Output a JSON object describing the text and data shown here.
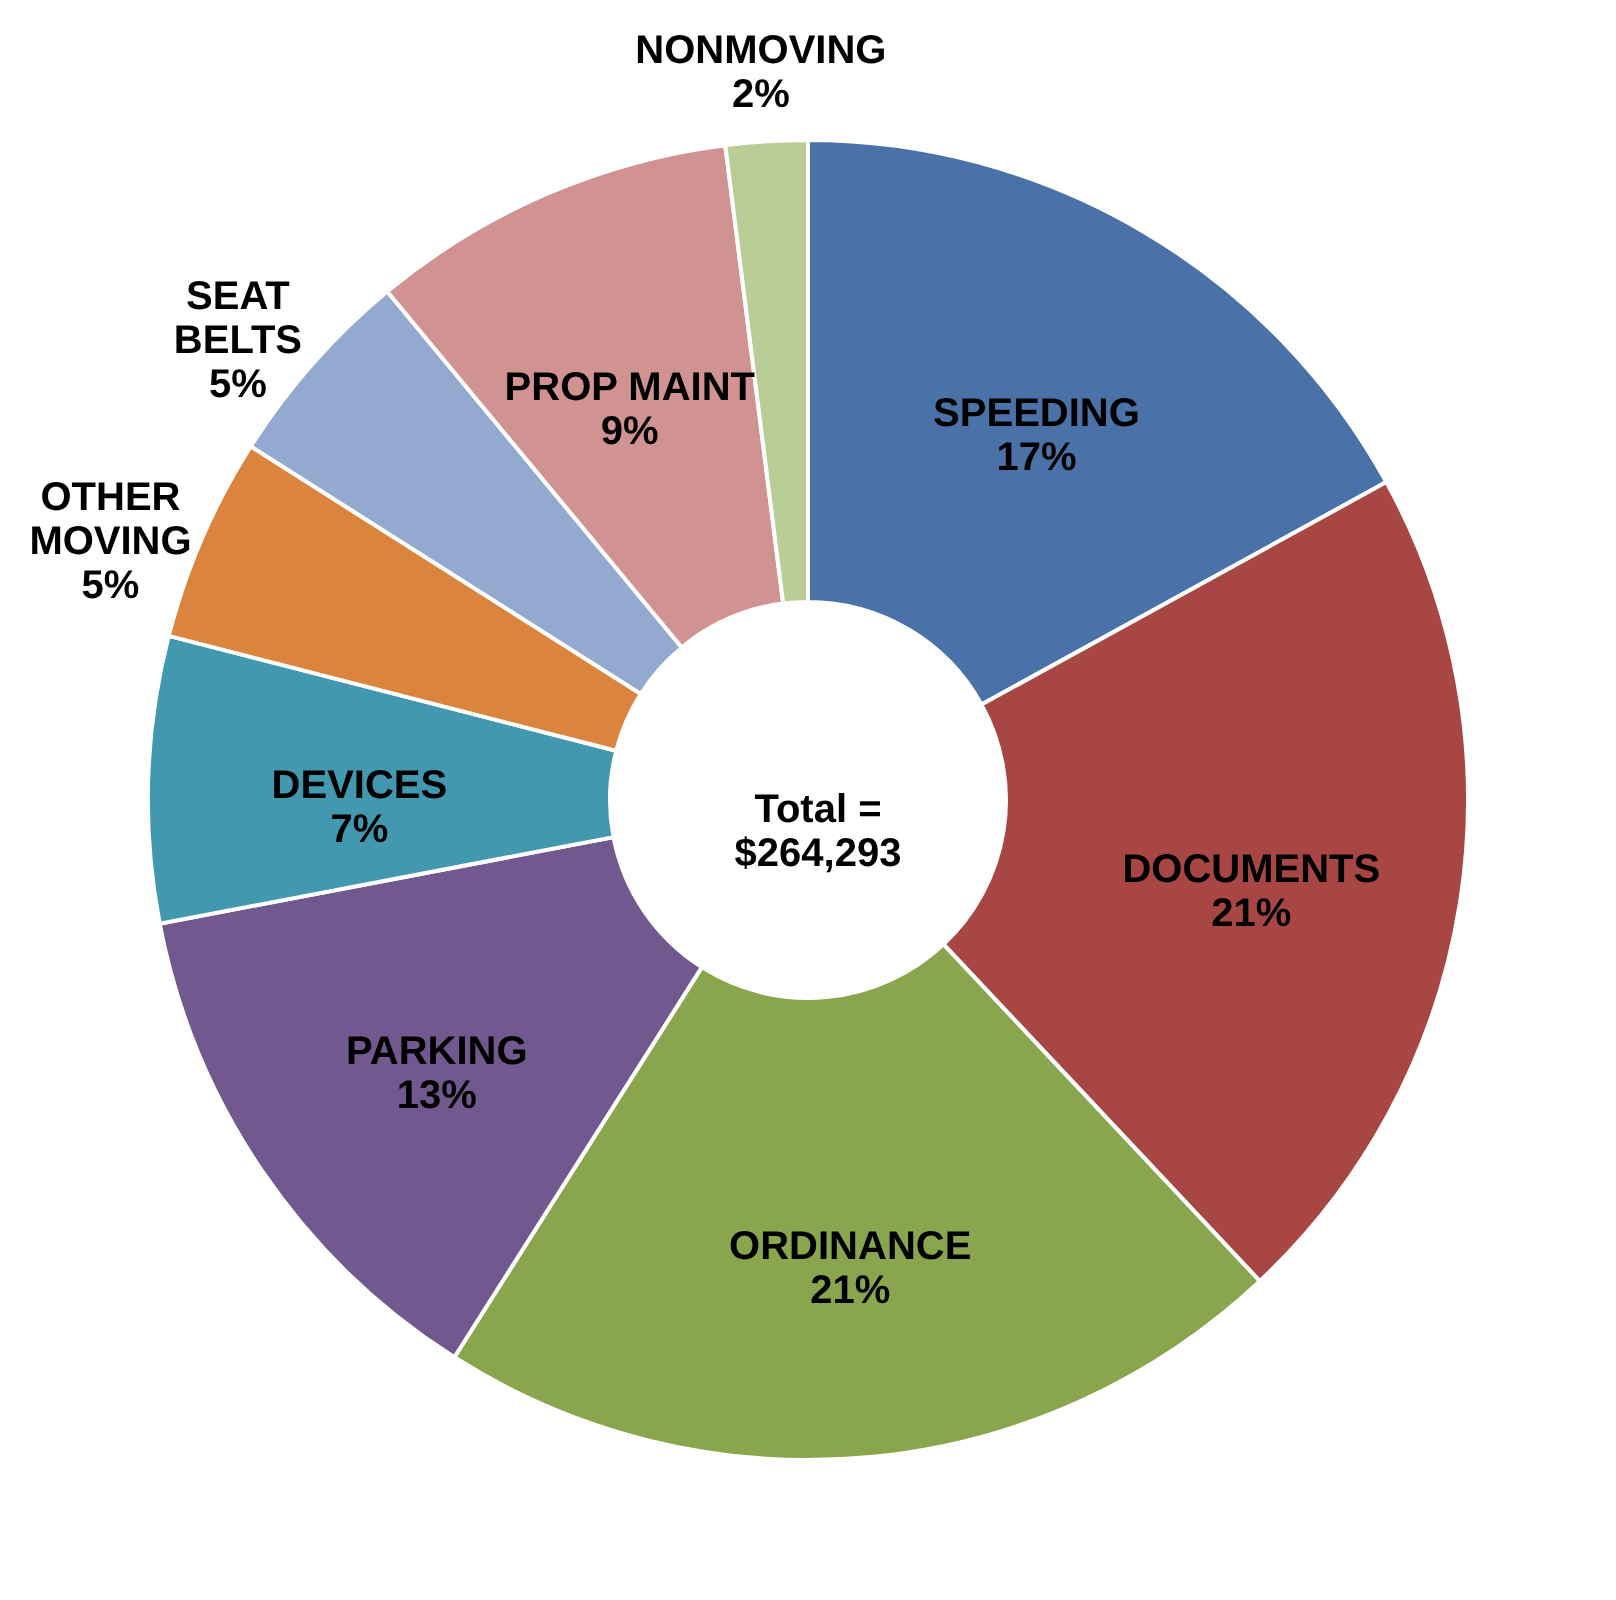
{
  "chart_data": {
    "type": "donut",
    "categories": [
      "SPEEDING",
      "DOCUMENTS",
      "ORDINANCE",
      "PARKING",
      "DEVICES",
      "OTHER MOVING",
      "SEAT BELTS",
      "PROP MAINT",
      "NONMOVING"
    ],
    "values": [
      17,
      21,
      21,
      13,
      7,
      5,
      5,
      9,
      2
    ],
    "value_labels": [
      "17%",
      "21%",
      "21%",
      "13%",
      "7%",
      "5%",
      "5%",
      "9%",
      "2%"
    ],
    "colors": [
      "#4a72a8",
      "#a84644",
      "#89a54e",
      "#71588f",
      "#4198af",
      "#db843d",
      "#93a9cf",
      "#d19392",
      "#b9cd96"
    ],
    "annotations": [
      "Total =\n$264,293"
    ],
    "legend": false
  }
}
